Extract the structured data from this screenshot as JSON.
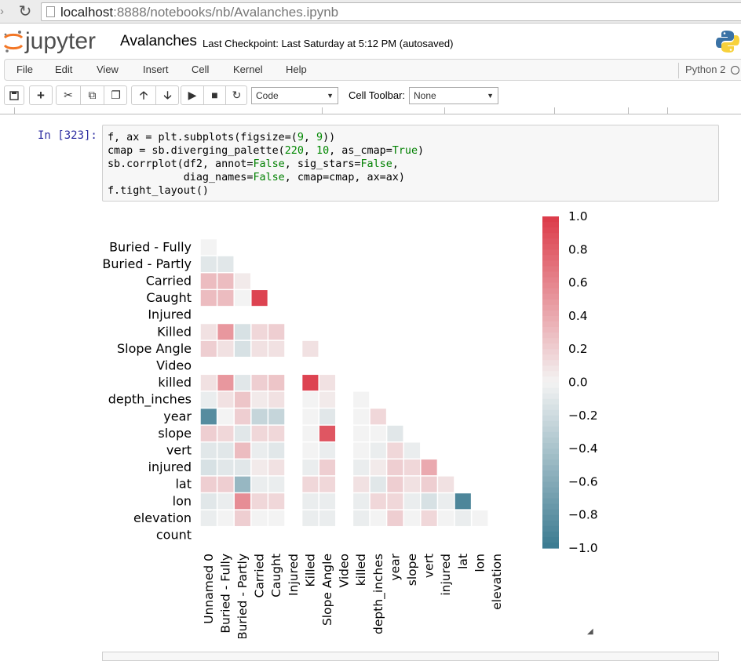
{
  "browser": {
    "url_host": "localhost",
    "url_rest": ":8888/notebooks/nb/Avalanches.ipynb"
  },
  "header": {
    "logo_text": "jupyter",
    "notebook_name": "Avalanches",
    "checkpoint": "Last Checkpoint: Last Saturday at 5:12 PM (autosaved)"
  },
  "menu": {
    "items": [
      "File",
      "Edit",
      "View",
      "Insert",
      "Cell",
      "Kernel",
      "Help"
    ],
    "kernel_name": "Python 2"
  },
  "toolbar": {
    "cell_type": "Code",
    "cell_toolbar_label": "Cell Toolbar:",
    "cell_toolbar_value": "None"
  },
  "cell": {
    "prompt": "In [323]:",
    "code_lines": [
      "f, ax = plt.subplots(figsize=(9, 9))",
      "cmap = sb.diverging_palette(220, 10, as_cmap=True)",
      "sb.corrplot(df2, annot=False, sig_stars=False,",
      "            diag_names=False, cmap=cmap, ax=ax)",
      "f.tight_layout()"
    ]
  },
  "colors": {
    "positive": "#dc3a48",
    "neutral": "#f3f3f3",
    "negative": "#3a7a90"
  },
  "chart_data": {
    "type": "heatmap",
    "row_labels": [
      "Buried - Fully",
      "Buried - Partly",
      "Carried",
      "Caught",
      "Injured",
      "Killed",
      "Slope Angle",
      "Video",
      "killed",
      "depth_inches",
      "year",
      "slope",
      "vert",
      "injured",
      "lat",
      "lon",
      "elevation",
      "count"
    ],
    "col_labels": [
      "Unnamed 0",
      "Buried - Fully",
      "Buried - Partly",
      "Carried",
      "Caught",
      "Injured",
      "Killed",
      "Slope Angle",
      "Video",
      "killed",
      "depth_inches",
      "year",
      "slope",
      "vert",
      "injured",
      "lat",
      "lon",
      "elevation"
    ],
    "values": [
      [
        0.0
      ],
      [
        -0.1,
        -0.1
      ],
      [
        0.3,
        0.3,
        0.05
      ],
      [
        0.3,
        0.3,
        0.0,
        0.95
      ],
      [
        null,
        null,
        null,
        null,
        null
      ],
      [
        0.1,
        0.5,
        -0.15,
        0.15,
        0.2,
        null
      ],
      [
        0.2,
        0.1,
        -0.15,
        0.1,
        0.1,
        null,
        0.1
      ],
      [
        null,
        null,
        null,
        null,
        null,
        null,
        null,
        null
      ],
      [
        0.1,
        0.5,
        -0.1,
        0.2,
        0.25,
        null,
        0.95,
        0.1,
        null
      ],
      [
        -0.05,
        0.1,
        0.25,
        0.05,
        0.1,
        null,
        0.0,
        0.05,
        null,
        0.0
      ],
      [
        -0.85,
        0.0,
        0.2,
        -0.25,
        -0.25,
        null,
        0.0,
        -0.1,
        null,
        0.0,
        0.15
      ],
      [
        0.2,
        0.15,
        -0.1,
        0.15,
        0.15,
        null,
        0.0,
        0.85,
        null,
        0.0,
        0.0,
        -0.1
      ],
      [
        -0.1,
        -0.1,
        0.3,
        -0.05,
        -0.1,
        null,
        0.0,
        -0.05,
        null,
        0.0,
        -0.05,
        0.15,
        -0.05
      ],
      [
        -0.15,
        -0.1,
        -0.1,
        0.05,
        0.1,
        null,
        -0.05,
        0.2,
        null,
        -0.05,
        0.05,
        0.2,
        0.15,
        0.4
      ],
      [
        0.2,
        0.2,
        -0.5,
        -0.05,
        -0.05,
        null,
        0.15,
        0.15,
        null,
        0.1,
        -0.1,
        0.2,
        0.1,
        0.2,
        0.1
      ],
      [
        -0.1,
        -0.05,
        0.55,
        0.15,
        0.15,
        null,
        -0.05,
        -0.05,
        null,
        -0.05,
        0.15,
        0.15,
        -0.05,
        -0.15,
        -0.05,
        -0.9
      ],
      [
        -0.05,
        0.0,
        0.2,
        0.0,
        0.0,
        null,
        -0.05,
        -0.05,
        null,
        -0.05,
        0.0,
        0.2,
        0.0,
        0.15,
        0.0,
        -0.05,
        0.0
      ],
      [
        null,
        null,
        null,
        null,
        null,
        null,
        null,
        null,
        null,
        null,
        null,
        null,
        null,
        null,
        null,
        null,
        null,
        null
      ]
    ],
    "colorbar": {
      "range": [
        -1.0,
        1.0
      ],
      "ticks": [
        "1.0",
        "0.8",
        "0.6",
        "0.4",
        "0.2",
        "0.0",
        "−0.2",
        "−0.4",
        "−0.6",
        "−0.8",
        "−1.0"
      ],
      "tick_values": [
        1.0,
        0.8,
        0.6,
        0.4,
        0.2,
        0.0,
        -0.2,
        -0.4,
        -0.6,
        -0.8,
        -1.0
      ]
    }
  }
}
